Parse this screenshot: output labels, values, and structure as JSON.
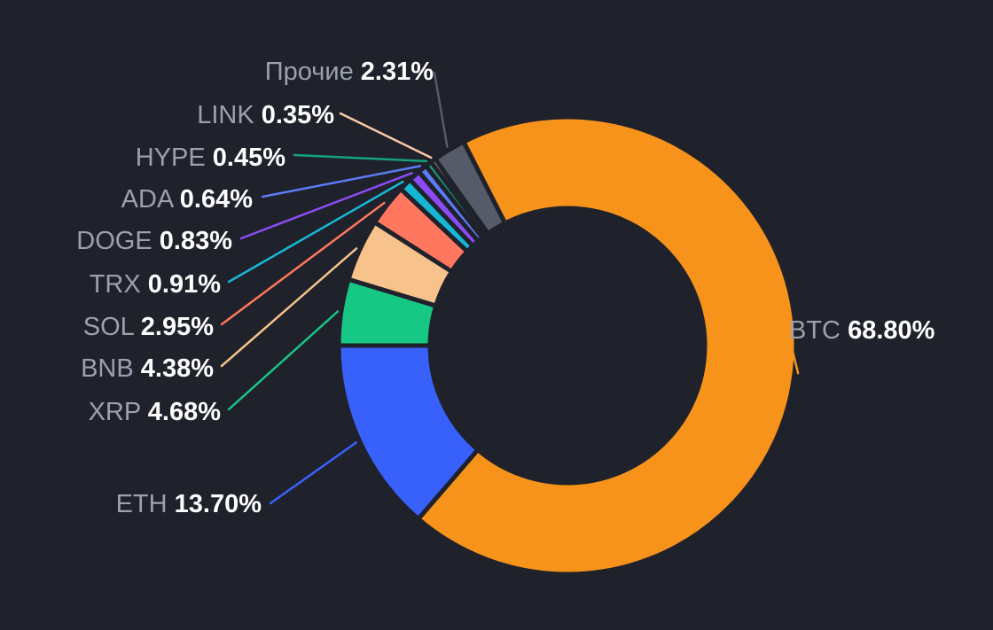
{
  "chart_data": {
    "type": "pie",
    "variant": "donut",
    "start_position": "top-left, just clockwise of Прочие",
    "label_style": "name gray, percent bold white",
    "slices": [
      {
        "name": "BTC",
        "value": 68.8,
        "label": "68.80%",
        "color": "#f7931a",
        "label_side": "right"
      },
      {
        "name": "ETH",
        "value": 13.7,
        "label": "13.70%",
        "color": "#3861fb",
        "label_side": "left"
      },
      {
        "name": "XRP",
        "value": 4.68,
        "label": "4.68%",
        "color": "#17c784",
        "label_side": "left"
      },
      {
        "name": "BNB",
        "value": 4.38,
        "label": "4.38%",
        "color": "#f8c28c",
        "label_side": "left"
      },
      {
        "name": "SOL",
        "value": 2.95,
        "label": "2.95%",
        "color": "#ff775f",
        "label_side": "left"
      },
      {
        "name": "TRX",
        "value": 0.91,
        "label": "0.91%",
        "color": "#16b7d4",
        "label_side": "left"
      },
      {
        "name": "DOGE",
        "value": 0.83,
        "label": "0.83%",
        "color": "#8b4cf6",
        "label_side": "left"
      },
      {
        "name": "ADA",
        "value": 0.64,
        "label": "0.64%",
        "color": "#5a7cf6",
        "label_side": "left"
      },
      {
        "name": "HYPE",
        "value": 0.45,
        "label": "0.45%",
        "color": "#14a37f",
        "label_side": "left"
      },
      {
        "name": "LINK",
        "value": 0.35,
        "label": "0.35%",
        "color": "#f9c9a6",
        "label_side": "left"
      },
      {
        "name": "Прочие",
        "value": 2.31,
        "label": "2.31%",
        "color": "#565b69",
        "label_side": "left"
      }
    ]
  }
}
